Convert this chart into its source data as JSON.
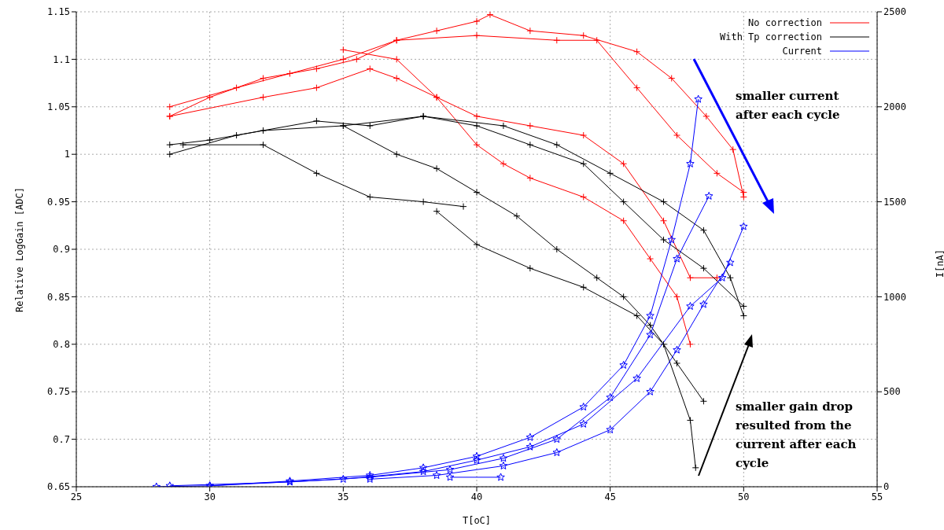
{
  "chart_data": {
    "type": "line",
    "xlabel": "T[oC]",
    "ylabel": "Relative LogGain [ADC]",
    "y2label": "I[nA]",
    "xlim": [
      25,
      55
    ],
    "xticks": [
      25,
      30,
      35,
      40,
      45,
      50,
      55
    ],
    "ylim": [
      0.65,
      1.15
    ],
    "yticks": [
      0.65,
      0.7,
      0.75,
      0.8,
      0.85,
      0.9,
      0.95,
      1,
      1.05,
      1.1,
      1.15
    ],
    "y2lim": [
      0,
      2500
    ],
    "y2ticks": [
      0,
      500,
      1000,
      1500,
      2000,
      2500
    ],
    "grid": true,
    "legend": "top right",
    "line_style": "solid",
    "annotations": [
      "smaller current after each cycle",
      "smaller gain drop resulted from the current after each cycle"
    ],
    "series": [
      {
        "name": "No correction",
        "color": "#ff0000",
        "marker": "cross",
        "x": [
          28.5,
          30,
          32,
          34,
          35.5,
          37,
          38.5,
          40,
          40.5,
          42,
          44,
          46,
          47.3,
          48.6,
          49.6,
          50
        ],
        "values": [
          1.04,
          1.06,
          1.08,
          1.09,
          1.1,
          1.12,
          1.13,
          1.14,
          1.147,
          1.13,
          1.125,
          1.108,
          1.08,
          1.04,
          1.005,
          0.955
        ]
      },
      {
        "color": "#ff0000",
        "marker": "cross",
        "x": [
          28.5,
          31,
          33,
          35,
          37,
          40,
          43,
          44.5,
          46,
          47.5,
          49,
          50
        ],
        "values": [
          1.05,
          1.07,
          1.085,
          1.1,
          1.12,
          1.125,
          1.12,
          1.12,
          1.07,
          1.02,
          0.98,
          0.96
        ]
      },
      {
        "color": "#ff0000",
        "marker": "cross",
        "x": [
          28.5,
          32,
          34,
          36,
          37,
          38.5,
          40,
          42,
          44,
          45.5,
          47,
          48,
          49
        ],
        "values": [
          1.04,
          1.06,
          1.07,
          1.09,
          1.08,
          1.06,
          1.04,
          1.03,
          1.02,
          0.99,
          0.93,
          0.87,
          0.87
        ]
      },
      {
        "color": "#ff0000",
        "marker": "cross",
        "x": [
          35,
          37,
          38.5,
          40,
          41,
          42,
          44,
          45.5,
          46.5,
          47.5,
          48
        ],
        "values": [
          1.11,
          1.1,
          1.06,
          1.01,
          0.99,
          0.975,
          0.955,
          0.93,
          0.89,
          0.85,
          0.8
        ]
      },
      {
        "name": "With Tp correction",
        "color": "#000000",
        "marker": "cross",
        "x": [
          28.5,
          30,
          32,
          35,
          38,
          41,
          43,
          45,
          47,
          48.5,
          49.5,
          50
        ],
        "values": [
          1.01,
          1.015,
          1.025,
          1.03,
          1.04,
          1.03,
          1.01,
          0.98,
          0.95,
          0.92,
          0.87,
          0.83
        ]
      },
      {
        "color": "#000000",
        "marker": "cross",
        "x": [
          28.5,
          31,
          34,
          36,
          38,
          40,
          42,
          44,
          45.5,
          47,
          48.5,
          50
        ],
        "values": [
          1,
          1.02,
          1.035,
          1.03,
          1.04,
          1.03,
          1.01,
          0.99,
          0.95,
          0.91,
          0.88,
          0.84
        ]
      },
      {
        "color": "#000000",
        "marker": "cross",
        "x": [
          29,
          32,
          34,
          36,
          38,
          39.5
        ],
        "values": [
          1.01,
          1.01,
          0.98,
          0.955,
          0.95,
          0.945
        ]
      },
      {
        "color": "#000000",
        "marker": "cross",
        "x": [
          35,
          37,
          38.5,
          40,
          41.5,
          43,
          44.5,
          45.5,
          46.5,
          47.5,
          48.5
        ],
        "values": [
          1.03,
          1,
          0.985,
          0.96,
          0.935,
          0.9,
          0.87,
          0.85,
          0.82,
          0.78,
          0.74
        ]
      },
      {
        "color": "#000000",
        "marker": "cross",
        "x": [
          38.5,
          40,
          42,
          44,
          46,
          47,
          48,
          48.2
        ],
        "values": [
          0.94,
          0.905,
          0.88,
          0.86,
          0.83,
          0.8,
          0.72,
          0.67
        ]
      },
      {
        "name": "Current",
        "color": "#0000ff",
        "marker": "star",
        "axis": "y2",
        "x": [
          28,
          30,
          33,
          36,
          38,
          40,
          42,
          44,
          45.5,
          46.5,
          47.3,
          48,
          48.3
        ],
        "values": [
          0,
          5,
          30,
          60,
          100,
          160,
          260,
          420,
          640,
          900,
          1300,
          1700,
          2040
        ]
      },
      {
        "color": "#0000ff",
        "marker": "star",
        "axis": "y2",
        "x": [
          28.5,
          33,
          36,
          39,
          41,
          43,
          45,
          46.5,
          47.5,
          48.7
        ],
        "values": [
          5,
          25,
          50,
          90,
          150,
          250,
          470,
          800,
          1200,
          1530
        ]
      },
      {
        "color": "#0000ff",
        "marker": "star",
        "axis": "y2",
        "x": [
          30,
          35,
          38,
          40,
          42,
          44,
          46,
          48,
          49.2,
          50
        ],
        "values": [
          5,
          40,
          80,
          140,
          210,
          330,
          570,
          950,
          1100,
          1370
        ]
      },
      {
        "color": "#0000ff",
        "marker": "star",
        "axis": "y2",
        "x": [
          36,
          38.5,
          41,
          43,
          45,
          46.5,
          47.5,
          48.5,
          49.5
        ],
        "values": [
          40,
          60,
          110,
          180,
          300,
          500,
          720,
          960,
          1180
        ]
      },
      {
        "color": "#0000ff",
        "marker": "star",
        "axis": "y2",
        "x": [
          39,
          40.9
        ],
        "values": [
          50,
          50
        ]
      }
    ]
  }
}
